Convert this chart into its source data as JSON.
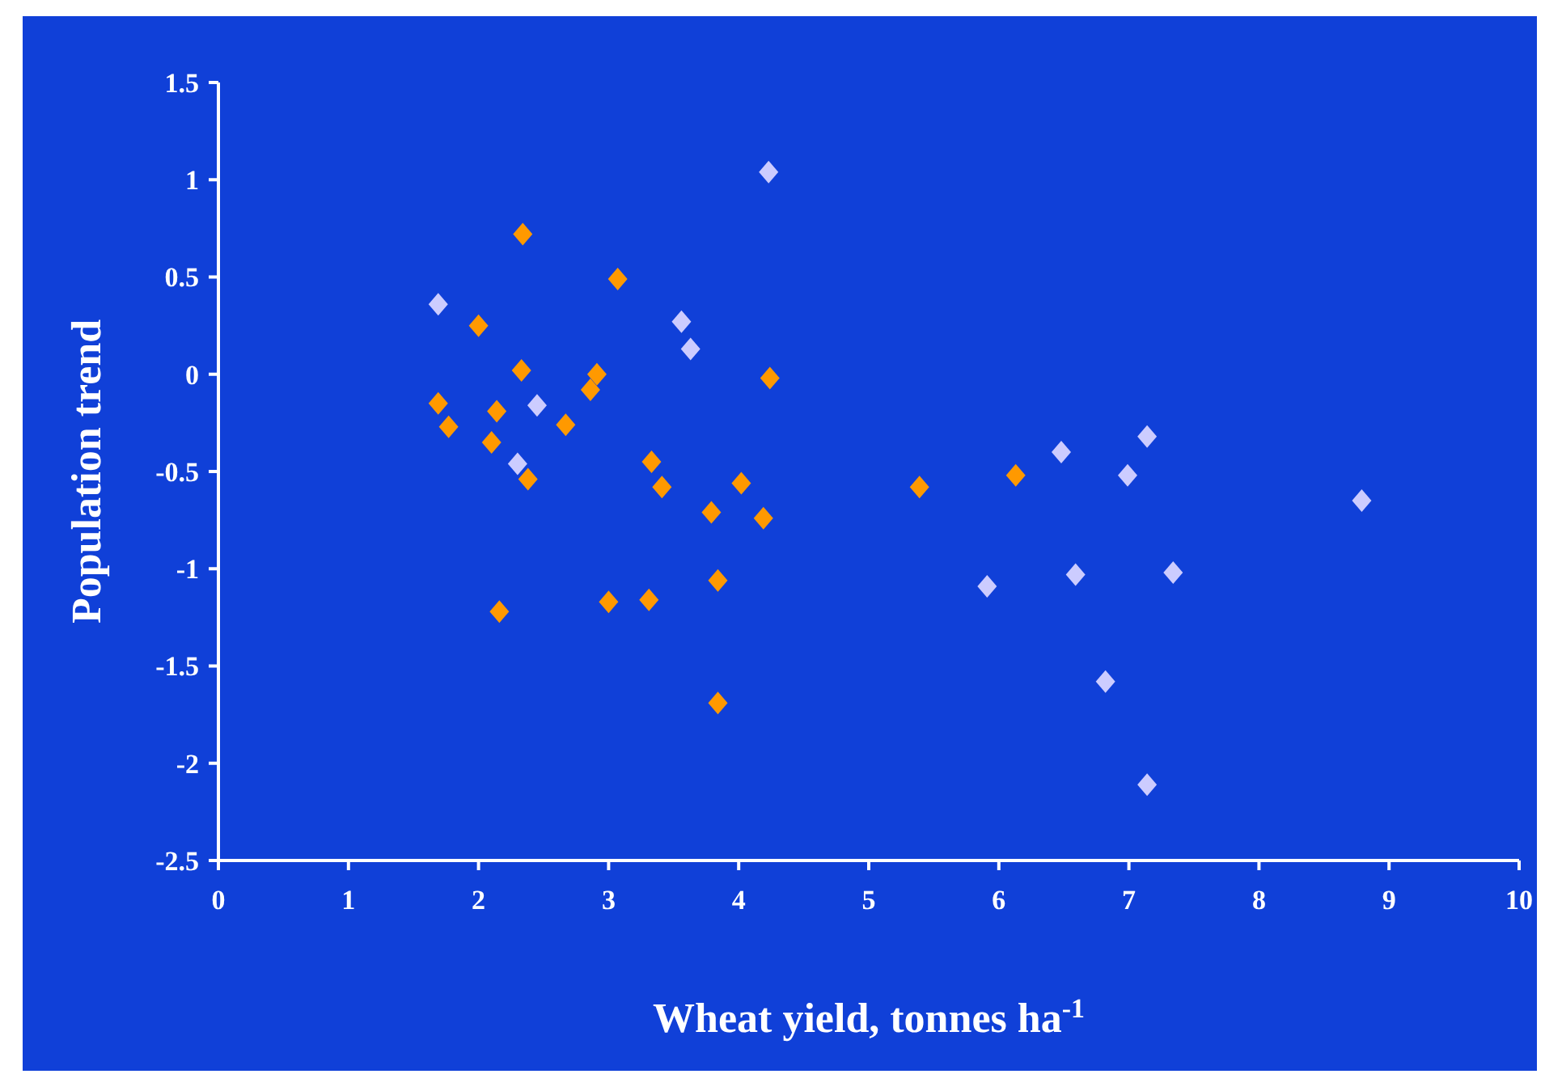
{
  "chart_data": {
    "type": "scatter",
    "xlabel": "Wheat yield, tonnes ha$^{-1}$",
    "ylabel": "Population trend",
    "xlim": [
      0,
      10
    ],
    "ylim": [
      -2.5,
      1.5
    ],
    "xticks": [
      0,
      1,
      2,
      3,
      4,
      5,
      6,
      7,
      8,
      9,
      10
    ],
    "yticks": [
      -2.5,
      -2,
      -1.5,
      -1,
      -0.5,
      0,
      0.5,
      1,
      1.5
    ],
    "grid": false,
    "marker": "diamond",
    "series": [
      {
        "color": "#ff9900",
        "x": [
          1.69,
          1.77,
          2.0,
          2.14,
          2.1,
          2.34,
          2.33,
          2.38,
          2.16,
          2.67,
          2.86,
          2.91,
          3.07,
          3.0,
          3.31,
          3.33,
          3.41,
          3.79,
          3.84,
          3.84,
          4.02,
          4.19,
          4.24,
          5.39,
          6.13
        ],
        "values": [
          -0.15,
          -0.27,
          0.25,
          -0.19,
          -0.35,
          0.72,
          0.02,
          -0.54,
          -1.22,
          -0.26,
          -0.08,
          0.0,
          0.49,
          -1.17,
          -1.16,
          -0.45,
          -0.58,
          -0.71,
          -1.06,
          -1.69,
          -0.56,
          -0.74,
          -0.02,
          -0.58,
          -0.52
        ]
      },
      {
        "color": "#ccccff",
        "x": [
          1.69,
          2.45,
          2.3,
          3.56,
          3.63,
          4.23,
          5.91,
          6.48,
          6.59,
          6.99,
          7.14,
          6.82,
          7.14,
          7.34,
          8.79
        ],
        "values": [
          0.36,
          -0.16,
          -0.46,
          0.27,
          0.13,
          1.04,
          -1.09,
          -0.4,
          -1.03,
          -0.52,
          -0.32,
          -1.58,
          -2.11,
          -1.02,
          -0.65
        ]
      }
    ]
  }
}
